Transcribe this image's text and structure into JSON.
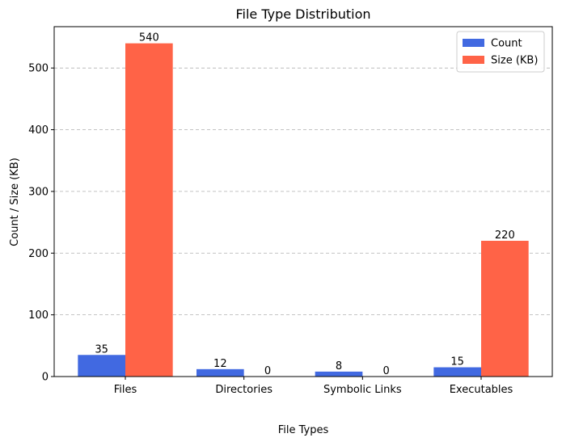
{
  "chart_data": {
    "type": "bar",
    "title": "File Type Distribution",
    "xlabel": "File Types",
    "ylabel": "Count / Size (KB)",
    "categories": [
      "Files",
      "Directories",
      "Symbolic Links",
      "Executables"
    ],
    "series": [
      {
        "name": "Count",
        "values": [
          35,
          12,
          8,
          15
        ],
        "color": "#4169E1"
      },
      {
        "name": "Size (KB)",
        "values": [
          540,
          0,
          0,
          220
        ],
        "color": "#FF6347"
      }
    ],
    "ylim": [
      0,
      567
    ],
    "yticks": [
      0,
      100,
      200,
      300,
      400,
      500
    ],
    "grid": "y-dashed",
    "legend": "top-right"
  }
}
